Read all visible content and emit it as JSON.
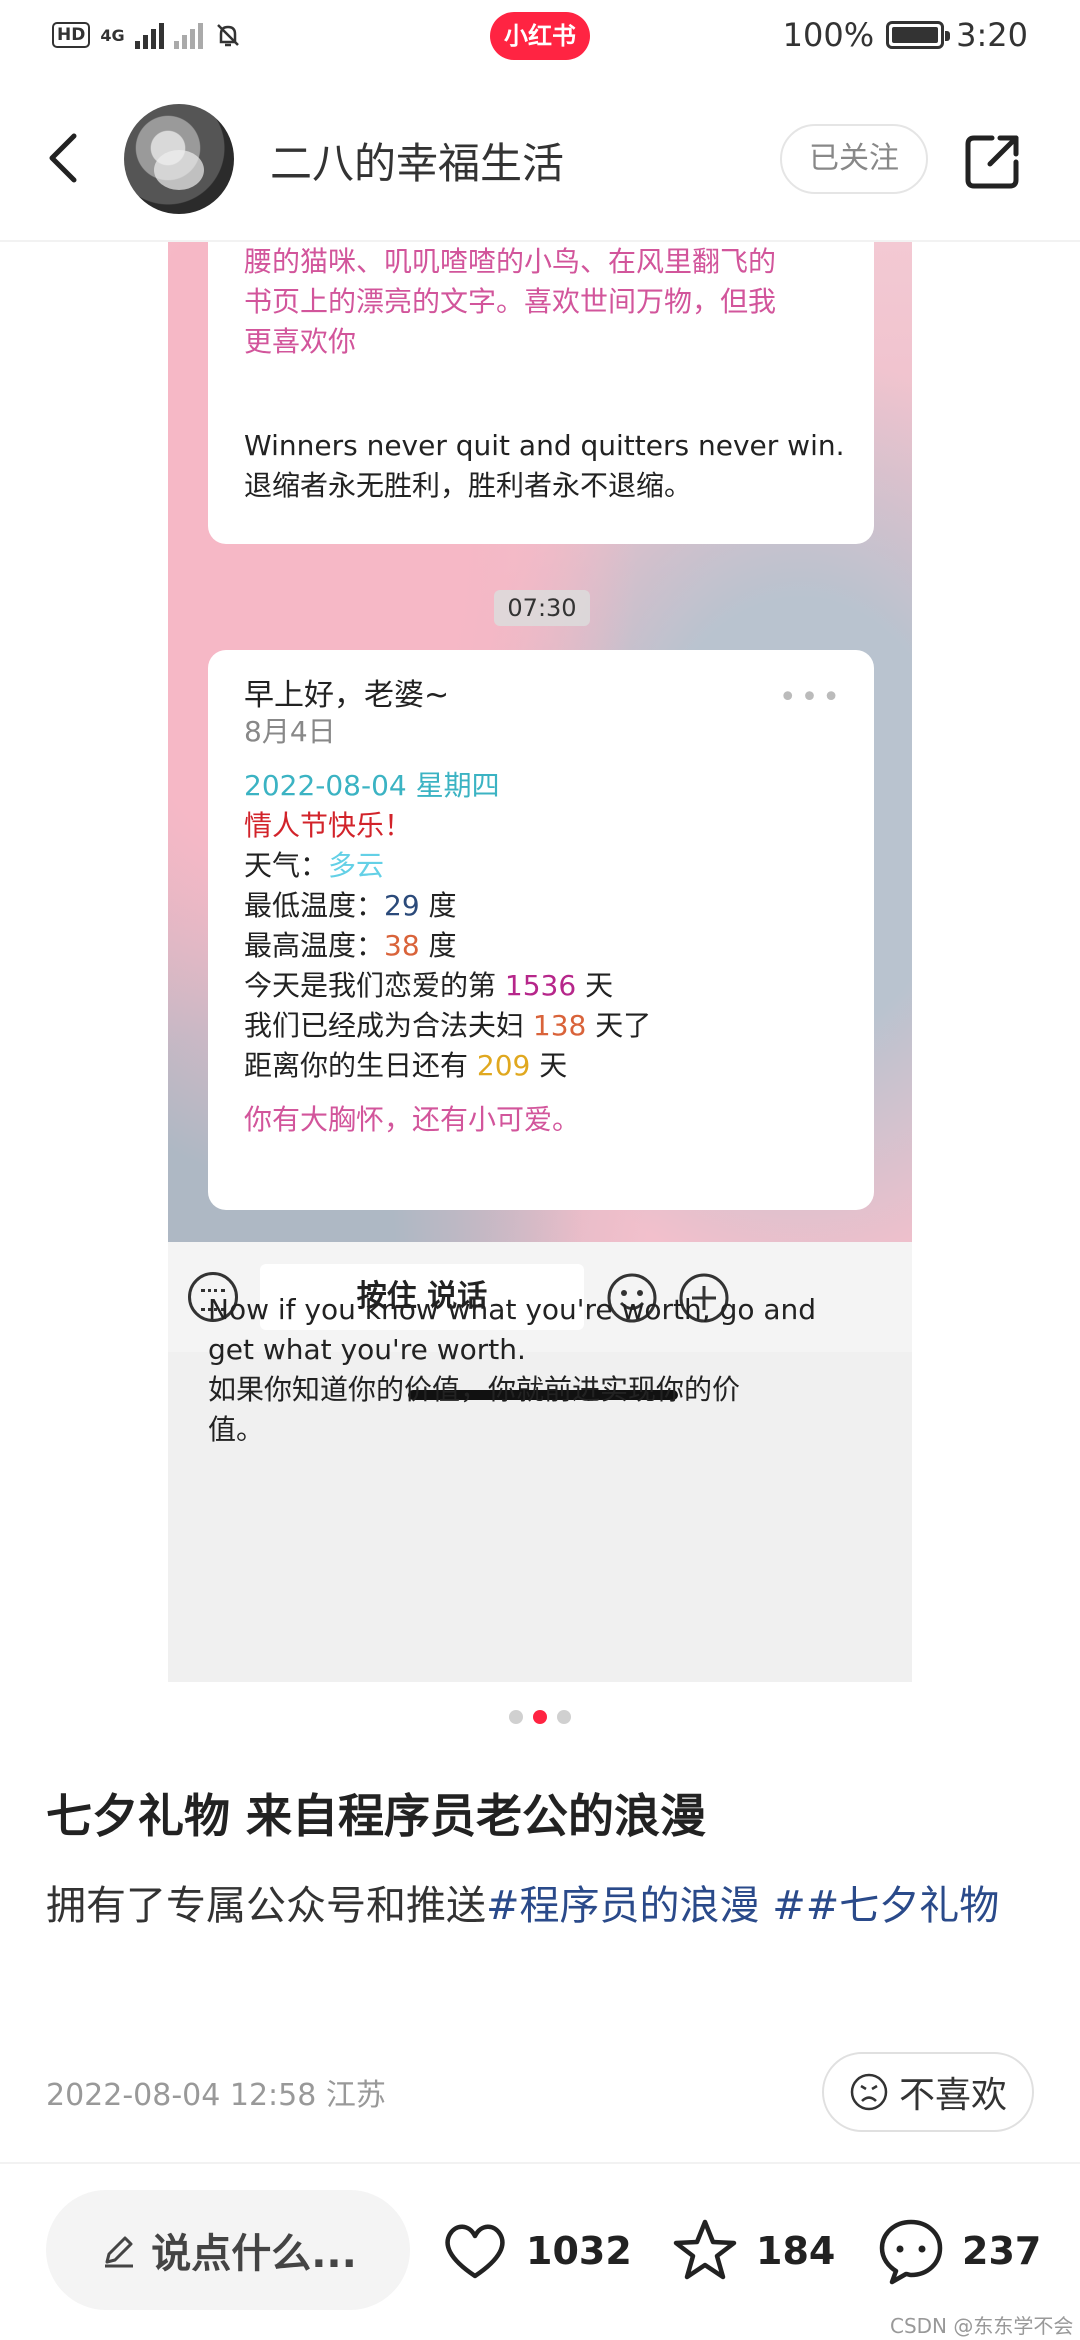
{
  "statusbar": {
    "hd": "HD",
    "network": "4G",
    "battery_text": "100%",
    "time": "3:20",
    "brand": "小红书"
  },
  "header": {
    "title": "二八的幸福生活",
    "follow_label": "已关注"
  },
  "screenshot": {
    "msg1_lines": [
      "腰的猫咪、叽叽喳喳的小鸟、在风里翻飞的",
      "书页上的漂亮的文字。喜欢世间万物，但我",
      "更喜欢你"
    ],
    "msg1_en": "Winners never quit and quitters never win.",
    "msg1_cn": "退缩者永无胜利，胜利者永不退缩。",
    "time_chip": "07:30",
    "msg2_title": "早上好，老婆~",
    "msg2_date": "8月4日",
    "msg2_more": "•••",
    "date_line": "2022-08-04  星期四",
    "holiday": "情人节快乐！",
    "weather_label": "天气：",
    "weather_value": "多云",
    "low_label": "最低温度：",
    "low_value": "29",
    "low_unit": " 度",
    "high_label": "最高温度：",
    "high_value": "38",
    "high_unit": " 度",
    "love_prefix": "今天是我们恋爱的第 ",
    "love_days": "1536",
    "love_suffix": " 天",
    "married_prefix": "我们已经成为合法夫妇 ",
    "married_days": "138",
    "married_suffix": " 天了",
    "birthday_prefix": "距离你的生日还有 ",
    "birthday_days": "209",
    "birthday_suffix": " 天",
    "sweet_line": "你有大胸怀，还有小可爱。",
    "quote_en_1": "Now if you know what you're worth, go and",
    "quote_en_2": "get what you're worth.",
    "quote_cn_1": "如果你知道你的价值，你就前进实现你的价",
    "quote_cn_2": "值。",
    "speak_label": "按住 说话"
  },
  "pager": {
    "count": 3,
    "active": 1
  },
  "post": {
    "title": "七夕礼物 来自程序员老公的浪漫",
    "desc_prefix": "拥有了专属公众号和推送",
    "tag1": "#程序员的浪漫",
    "tag2": " ##七夕礼物",
    "meta": "2022-08-04 12:58 江苏",
    "dislike_label": "不喜欢"
  },
  "bottom": {
    "comment_placeholder": "说点什么...",
    "likes": "1032",
    "stars": "184",
    "comments": "237"
  },
  "watermark": "CSDN @东东学不会",
  "colors": {
    "brand": "#ff2442",
    "tag": "#2a4a8a"
  }
}
